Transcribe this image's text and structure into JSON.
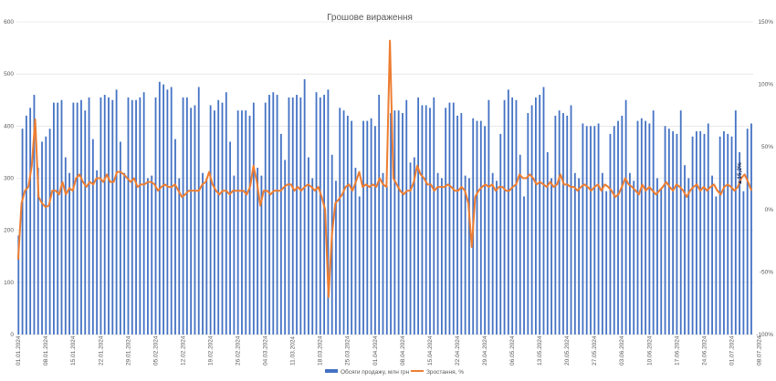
{
  "chart_data": {
    "type": "bar+line",
    "title": "Грошове вираження",
    "y_left": {
      "min": 0,
      "max": 600,
      "ticks": [
        "0",
        "100",
        "200",
        "300",
        "400",
        "500",
        "600"
      ]
    },
    "y_right": {
      "min": -100,
      "max": 150,
      "ticks": [
        "-100%",
        "-50%",
        "0%",
        "50%",
        "100%",
        "150%"
      ]
    },
    "x_tick_labels": [
      "01.01.2024",
      "08.01.2024",
      "15.01.2024",
      "22.01.2024",
      "29.01.2024",
      "05.02.2024",
      "12.02.2024",
      "19.02.2024",
      "26.02.2024",
      "04.03.2024",
      "11.03.2024",
      "18.03.2024",
      "25.03.2024",
      "01.04.2024",
      "08.04.2024",
      "15.04.2024",
      "22.04.2024",
      "29.04.2024",
      "06.05.2024",
      "13.05.2024",
      "20.05.2024",
      "27.05.2024",
      "03.06.2024",
      "10.06.2024",
      "17.06.2024",
      "24.06.2024",
      "01.07.2024",
      "08.07.2024"
    ],
    "series": [
      {
        "name": "Обсяги продажу, млн грн",
        "kind": "bar",
        "axis": "left",
        "color": "#4472c4",
        "values": [
          190,
          395,
          420,
          435,
          460,
          320,
          370,
          380,
          395,
          445,
          445,
          450,
          340,
          310,
          445,
          445,
          450,
          430,
          455,
          375,
          315,
          455,
          460,
          455,
          450,
          470,
          370,
          310,
          455,
          450,
          450,
          455,
          465,
          300,
          305,
          455,
          485,
          480,
          470,
          475,
          375,
          300,
          455,
          455,
          435,
          440,
          475,
          310,
          300,
          440,
          430,
          450,
          445,
          465,
          370,
          305,
          430,
          430,
          430,
          420,
          445,
          320,
          305,
          445,
          460,
          465,
          460,
          385,
          335,
          455,
          455,
          460,
          455,
          490,
          340,
          300,
          465,
          455,
          460,
          470,
          345,
          295,
          435,
          430,
          420,
          410,
          320,
          265,
          410,
          410,
          415,
          400,
          460,
          310,
          285,
          425,
          430,
          430,
          425,
          450,
          330,
          340,
          455,
          440,
          440,
          435,
          455,
          310,
          300,
          435,
          445,
          445,
          420,
          425,
          305,
          300,
          415,
          410,
          410,
          400,
          450,
          310,
          295,
          385,
          450,
          470,
          455,
          450,
          345,
          265,
          425,
          440,
          455,
          460,
          475,
          350,
          300,
          420,
          430,
          425,
          420,
          440,
          310,
          300,
          405,
          400,
          400,
          400,
          405,
          310,
          275,
          385,
          400,
          410,
          420,
          450,
          310,
          295,
          410,
          415,
          410,
          405,
          430,
          300,
          280,
          400,
          395,
          390,
          385,
          430,
          325,
          300,
          380,
          390,
          390,
          385,
          405,
          305,
          265,
          380,
          390,
          385,
          380,
          430,
          350,
          275,
          395,
          405
        ]
      },
      {
        "name": "Зростання, %",
        "kind": "line",
        "axis": "right",
        "color": "#ed7d31",
        "values": [
          -40,
          5,
          15,
          18,
          35,
          72,
          10,
          5,
          2,
          3,
          15,
          15,
          12,
          22,
          12,
          17,
          15,
          25,
          28,
          22,
          18,
          22,
          20,
          25,
          25,
          22,
          28,
          22,
          22,
          30,
          30,
          28,
          25,
          22,
          25,
          18,
          20,
          20,
          22,
          22,
          20,
          15,
          18,
          20,
          18,
          18,
          20,
          15,
          10,
          12,
          15,
          15,
          15,
          15,
          20,
          22,
          30,
          20,
          15,
          12,
          15,
          15,
          12,
          15,
          15,
          15,
          15,
          12,
          18,
          35,
          22,
          3,
          15,
          15,
          12,
          15,
          15,
          15,
          18,
          20,
          20,
          15,
          18,
          15,
          18,
          20,
          18,
          15,
          18,
          10,
          0,
          -70,
          -20,
          5,
          8,
          12,
          18,
          20,
          15,
          22,
          30,
          18,
          20,
          18,
          20,
          18,
          25,
          20,
          18,
          135,
          25,
          20,
          15,
          12,
          15,
          15,
          22,
          35,
          28,
          25,
          20,
          20,
          15,
          18,
          18,
          18,
          20,
          18,
          15,
          15,
          18,
          15,
          5,
          -30,
          10,
          15,
          18,
          20,
          18,
          20,
          15,
          18,
          18,
          15,
          15,
          18,
          20,
          28,
          25,
          25,
          28,
          25,
          20,
          22,
          20,
          18,
          22,
          18,
          20,
          28,
          20,
          20,
          18,
          18,
          15,
          18,
          20,
          18,
          15,
          18,
          20,
          15,
          20,
          18,
          15,
          10,
          12,
          18,
          25,
          20,
          18,
          15,
          12,
          20,
          15,
          18,
          15,
          12,
          15,
          18,
          22,
          18,
          15,
          20,
          18,
          15,
          10,
          15,
          18,
          20,
          15,
          18,
          15,
          18,
          20,
          15,
          12,
          18,
          20,
          18,
          15,
          18,
          25,
          28,
          22,
          15
        ]
      }
    ],
    "annotations": [
      {
        "text": "▲15,2%"
      }
    ]
  }
}
